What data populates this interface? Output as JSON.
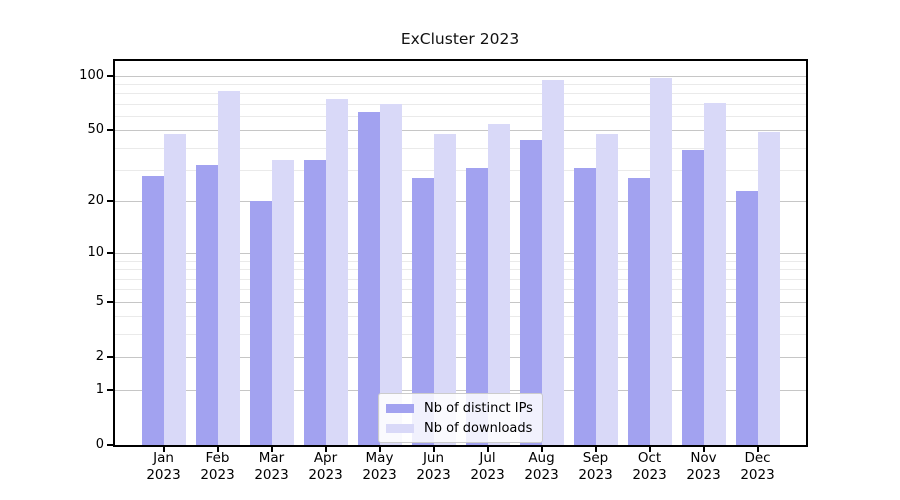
{
  "chart_data": {
    "type": "bar",
    "title": "ExCluster 2023",
    "categories": [
      "Jan",
      "Feb",
      "Mar",
      "Apr",
      "May",
      "Jun",
      "Jul",
      "Aug",
      "Sep",
      "Oct",
      "Nov",
      "Dec"
    ],
    "year": "2023",
    "series": [
      {
        "name": "Nb of distinct IPs",
        "color": "#a2a2f0",
        "values": [
          28,
          32,
          20,
          34,
          63,
          27,
          31,
          44,
          31,
          27,
          39,
          23
        ]
      },
      {
        "name": "Nb of downloads",
        "color": "#d9d9f8",
        "values": [
          48,
          82,
          34,
          74,
          70,
          48,
          54,
          95,
          48,
          97,
          71,
          49
        ]
      }
    ],
    "yscale": "log1p",
    "ylim": [
      0,
      124
    ],
    "yticks": [
      0,
      1,
      2,
      5,
      10,
      20,
      50,
      100
    ],
    "y_minor_gridlines": [
      3,
      4,
      6,
      7,
      8,
      9,
      30,
      40,
      60,
      70,
      80,
      90
    ],
    "grid": "horizontal-major-and-minor",
    "legend_position": "bottom-center"
  },
  "colors": {
    "bar_distinct_ips": "#a2a2f0",
    "bar_downloads": "#d9d9f8",
    "grid_major": "#c6c6c6",
    "grid_minor": "#eaeaea",
    "spine": "#000000",
    "legend_border": "#cccccc",
    "background": "#ffffff",
    "text": "#000000"
  }
}
